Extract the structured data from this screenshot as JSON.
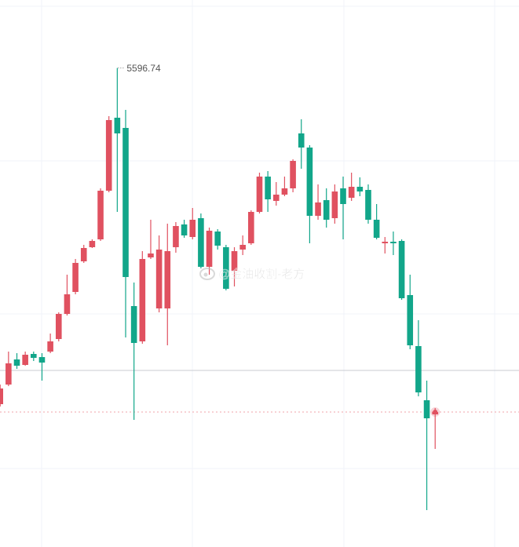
{
  "chart_data": {
    "type": "candlestick",
    "ylim": [
      4376,
      5770
    ],
    "up_color": "#e05160",
    "down_color": "#12a68a",
    "open": [
      4740,
      4790,
      4854,
      4840,
      4868,
      4860,
      4874,
      4906,
      4970,
      5026,
      5104,
      5140,
      5160,
      5284,
      5470,
      5444,
      4990,
      4900,
      5114,
      4984,
      4984,
      5140,
      5198,
      5166,
      5214,
      5090,
      5180,
      5140,
      5080,
      5134,
      5150,
      5230,
      5320,
      5258,
      5274,
      5290,
      5430,
      5394,
      5220,
      5260,
      5214,
      5290,
      5266,
      5294,
      5286,
      5210,
      5150,
      5154,
      5156,
      5018,
      4888,
      4750,
      4714
    ],
    "high": [
      4790,
      4874,
      4870,
      4874,
      4874,
      4870,
      4920,
      4974,
      5070,
      5110,
      5146,
      5160,
      5290,
      5474,
      5596.74,
      5490,
      5050,
      5130,
      5210,
      5170,
      5200,
      5204,
      5210,
      5240,
      5226,
      5190,
      5186,
      5146,
      5140,
      5170,
      5234,
      5330,
      5334,
      5306,
      5320,
      5364,
      5466,
      5400,
      5300,
      5290,
      5300,
      5320,
      5330,
      5318,
      5300,
      5250,
      5166,
      5180,
      5160,
      5070,
      4954,
      4800,
      4730
    ],
    "low": [
      4734,
      4786,
      4830,
      4838,
      4850,
      4800,
      4870,
      4900,
      4966,
      5020,
      5100,
      5138,
      5156,
      5280,
      5230,
      4910,
      4700,
      4894,
      5110,
      4974,
      4890,
      5126,
      5164,
      5160,
      5086,
      5070,
      5134,
      5030,
      5040,
      5120,
      5146,
      5226,
      5230,
      5246,
      5270,
      5280,
      5340,
      5150,
      5210,
      5190,
      5200,
      5160,
      5258,
      5270,
      5200,
      5160,
      5124,
      5120,
      5006,
      4880,
      4760,
      4470,
      4626
    ],
    "close": [
      4780,
      4844,
      4838,
      4866,
      4858,
      4846,
      4900,
      4970,
      5020,
      5100,
      5138,
      5156,
      5284,
      5464,
      5430,
      5064,
      4896,
      5110,
      5124,
      5134,
      5130,
      5194,
      5170,
      5210,
      5090,
      5182,
      5144,
      5034,
      5130,
      5146,
      5230,
      5320,
      5262,
      5274,
      5290,
      5360,
      5394,
      5220,
      5254,
      5210,
      5282,
      5250,
      5294,
      5282,
      5210,
      5164,
      5154,
      5150,
      5010,
      4890,
      4770,
      4704,
      4720
    ],
    "high_label_index": 14,
    "reference_line": 4826,
    "price_line": 4720,
    "watermark": "@金油收割-老方"
  }
}
